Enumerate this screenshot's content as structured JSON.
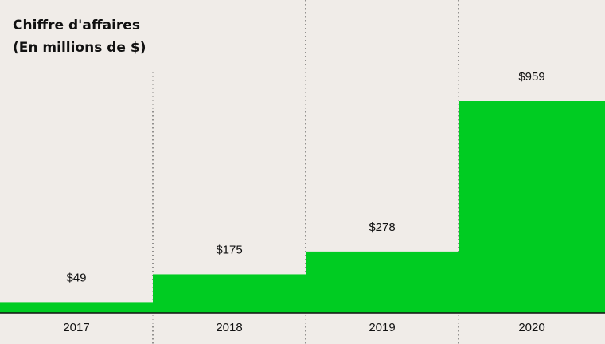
{
  "chart_data": {
    "type": "bar",
    "title": "Chiffre d'affaires",
    "subtitle": "(En millions de $)",
    "categories": [
      "2017",
      "2018",
      "2019",
      "2020"
    ],
    "values": [
      49,
      175,
      278,
      959
    ],
    "value_labels": [
      "$49",
      "$175",
      "$278",
      "$959"
    ],
    "color": "#00cc22"
  }
}
